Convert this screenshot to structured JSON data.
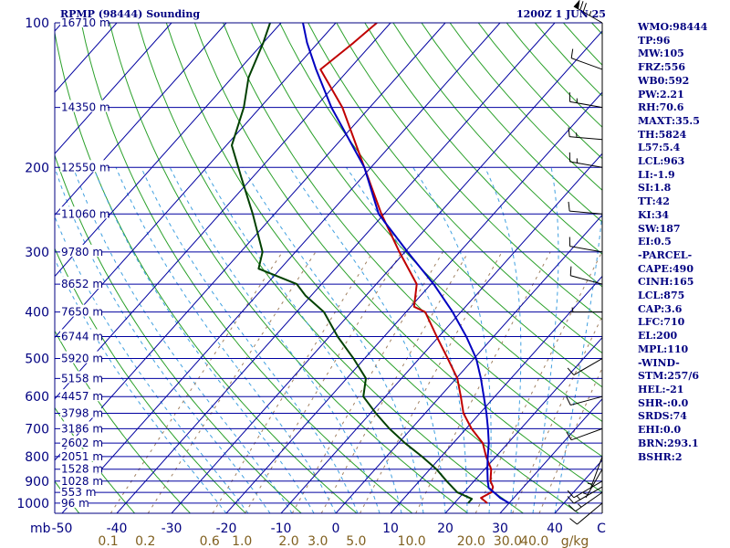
{
  "header": {
    "station": "RPMP (98444) Sounding",
    "time": "1200Z  1 JUN 25"
  },
  "colors": {
    "frame": "#000080",
    "isobar": "#0000a0",
    "isotherm": "#0000a0",
    "dry_adiabat": "#2aa02a",
    "moist_adiabat": "#40a0e0",
    "mixing_ratio": "#a08060",
    "temperature": "#c00000",
    "dewpoint": "#004000",
    "parcel": "#0000c0",
    "label_text": "#000080",
    "mixing_text": "#806020"
  },
  "chart_data": {
    "type": "line",
    "title": "RPMP (98444) Sounding",
    "valid_time": "1200Z  1 JUN 25",
    "pressure_levels": [
      {
        "p": 100,
        "p_label": "100",
        "h_label": "16710 m"
      },
      {
        "p": 150,
        "p_label": "",
        "h_label": "14350 m"
      },
      {
        "p": 200,
        "p_label": "200",
        "h_label": "12550 m"
      },
      {
        "p": 250,
        "p_label": "",
        "h_label": "11060 m"
      },
      {
        "p": 300,
        "p_label": "300",
        "h_label": "9780 m"
      },
      {
        "p": 350,
        "p_label": "",
        "h_label": "8652 m"
      },
      {
        "p": 400,
        "p_label": "400",
        "h_label": "7650 m"
      },
      {
        "p": 450,
        "p_label": "",
        "h_label": "6744 m"
      },
      {
        "p": 500,
        "p_label": "500",
        "h_label": "5920 m"
      },
      {
        "p": 550,
        "p_label": "",
        "h_label": "5158 m"
      },
      {
        "p": 600,
        "p_label": "600",
        "h_label": "4457 m"
      },
      {
        "p": 650,
        "p_label": "",
        "h_label": "3798 m"
      },
      {
        "p": 700,
        "p_label": "700",
        "h_label": "3186 m"
      },
      {
        "p": 750,
        "p_label": "",
        "h_label": "2602 m"
      },
      {
        "p": 800,
        "p_label": "800",
        "h_label": "2051 m"
      },
      {
        "p": 850,
        "p_label": "",
        "h_label": "1528 m"
      },
      {
        "p": 900,
        "p_label": "900",
        "h_label": "1028 m"
      },
      {
        "p": 950,
        "p_label": "",
        "h_label": "553 m"
      },
      {
        "p": 1000,
        "p_label": "1000",
        "h_label": "96 m"
      }
    ],
    "pressure_unit_label": "mb",
    "x_tick_labels": [
      "-50",
      "-40",
      "-30",
      "-20",
      "-10",
      "0",
      "10",
      "20",
      "30",
      "40"
    ],
    "x_tick_values": [
      -50,
      -40,
      -30,
      -20,
      -10,
      0,
      10,
      20,
      30,
      40
    ],
    "x_axis_unit_label": "C",
    "xlim": [
      -50,
      50
    ],
    "mixing_ratio_labels": [
      "0.1",
      "0.2",
      "0.6",
      "1.0",
      "2.0",
      "3.0",
      "5.0",
      "10.0",
      "20.0",
      "30.0",
      "40.0"
    ],
    "mixing_ratio_values": [
      0.1,
      0.2,
      0.6,
      1.0,
      2.0,
      3.0,
      5.0,
      10.0,
      20.0,
      30.0,
      40.0
    ],
    "mixing_ratio_unit": "g/kg",
    "series": [
      {
        "key": "temperature",
        "points": [
          [
            1000,
            26.0
          ],
          [
            975,
            24.0
          ],
          [
            950,
            25.0
          ],
          [
            925,
            24.4
          ],
          [
            900,
            23.0
          ],
          [
            850,
            21.2
          ],
          [
            800,
            18.2
          ],
          [
            750,
            15.4
          ],
          [
            700,
            11.0
          ],
          [
            650,
            7.0
          ],
          [
            600,
            3.8
          ],
          [
            550,
            0.2
          ],
          [
            500,
            -4.8
          ],
          [
            450,
            -10.4
          ],
          [
            400,
            -16.5
          ],
          [
            390,
            -19.4
          ],
          [
            350,
            -22.6
          ],
          [
            300,
            -31.0
          ],
          [
            250,
            -40.5
          ],
          [
            200,
            -51.2
          ],
          [
            150,
            -65.0
          ],
          [
            125,
            -75.2
          ],
          [
            110,
            -73.5
          ],
          [
            100,
            -72.5
          ]
        ]
      },
      {
        "key": "dewpoint",
        "points": [
          [
            1000,
            22.5
          ],
          [
            980,
            22.5
          ],
          [
            950,
            18.8
          ],
          [
            900,
            15.0
          ],
          [
            850,
            11.2
          ],
          [
            800,
            6.5
          ],
          [
            750,
            1.2
          ],
          [
            700,
            -4.0
          ],
          [
            650,
            -9.0
          ],
          [
            600,
            -14.0
          ],
          [
            550,
            -16.5
          ],
          [
            500,
            -22.0
          ],
          [
            450,
            -28.5
          ],
          [
            400,
            -35.0
          ],
          [
            370,
            -41.0
          ],
          [
            350,
            -44.5
          ],
          [
            325,
            -54.0
          ],
          [
            300,
            -56.0
          ],
          [
            250,
            -64.0
          ],
          [
            210,
            -72.0
          ],
          [
            180,
            -79.0
          ],
          [
            150,
            -83.0
          ],
          [
            130,
            -87.0
          ],
          [
            110,
            -90.0
          ],
          [
            100,
            -92.0
          ]
        ]
      },
      {
        "key": "parcel",
        "points": [
          [
            1000,
            30.0
          ],
          [
            975,
            27.5
          ],
          [
            950,
            25.5
          ],
          [
            930,
            23.8
          ],
          [
            900,
            22.5
          ],
          [
            850,
            20.5
          ],
          [
            800,
            18.5
          ],
          [
            750,
            16.5
          ],
          [
            700,
            14.0
          ],
          [
            650,
            11.2
          ],
          [
            600,
            8.0
          ],
          [
            550,
            4.5
          ],
          [
            500,
            0.4
          ],
          [
            450,
            -5.0
          ],
          [
            400,
            -11.5
          ],
          [
            350,
            -19.5
          ],
          [
            300,
            -29.5
          ],
          [
            250,
            -41.0
          ],
          [
            200,
            -51.2
          ],
          [
            150,
            -67.0
          ],
          [
            125,
            -76.0
          ],
          [
            110,
            -82.0
          ],
          [
            100,
            -86.0
          ]
        ]
      }
    ],
    "winds": [
      {
        "p": 100,
        "dir": 300,
        "kt": 75
      },
      {
        "p": 125,
        "dir": 290,
        "kt": 10
      },
      {
        "p": 150,
        "dir": 280,
        "kt": 15
      },
      {
        "p": 175,
        "dir": 275,
        "kt": 15
      },
      {
        "p": 200,
        "dir": 280,
        "kt": 15
      },
      {
        "p": 250,
        "dir": 275,
        "kt": 10
      },
      {
        "p": 300,
        "dir": 280,
        "kt": 10
      },
      {
        "p": 350,
        "dir": 285,
        "kt": 10
      },
      {
        "p": 400,
        "dir": 270,
        "kt": 5
      },
      {
        "p": 500,
        "dir": 240,
        "kt": 10
      },
      {
        "p": 600,
        "dir": 255,
        "kt": 10
      },
      {
        "p": 700,
        "dir": 250,
        "kt": 10
      },
      {
        "p": 800,
        "dir": 200,
        "kt": 5
      },
      {
        "p": 850,
        "dir": 210,
        "kt": 5
      },
      {
        "p": 900,
        "dir": 240,
        "kt": 10
      },
      {
        "p": 925,
        "dir": 240,
        "kt": 15
      },
      {
        "p": 950,
        "dir": 235,
        "kt": 15
      },
      {
        "p": 1000,
        "dir": 230,
        "kt": 10
      }
    ]
  },
  "indices": [
    "WMO:98444",
    "TP:96",
    "MW:105",
    "FRZ:556",
    "WB0:592",
    "PW:2.21",
    "RH:70.6",
    "MAXT:35.5",
    "TH:5824",
    "L57:5.4",
    "LCL:963",
    "LI:-1.9",
    "SI:1.8",
    "TT:42",
    "KI:34",
    "SW:187",
    "EI:0.5",
    "-PARCEL-",
    "CAPE:490",
    "CINH:165",
    "LCL:875",
    "CAP:3.6",
    "LFC:710",
    "EL:200",
    "MPL:110",
    "-WIND-",
    "STM:257/6",
    "HEL:-21",
    "SHR-:0.0",
    "SRDS:74",
    "EHI:0.0",
    "BRN:293.1",
    "BSHR:2"
  ]
}
